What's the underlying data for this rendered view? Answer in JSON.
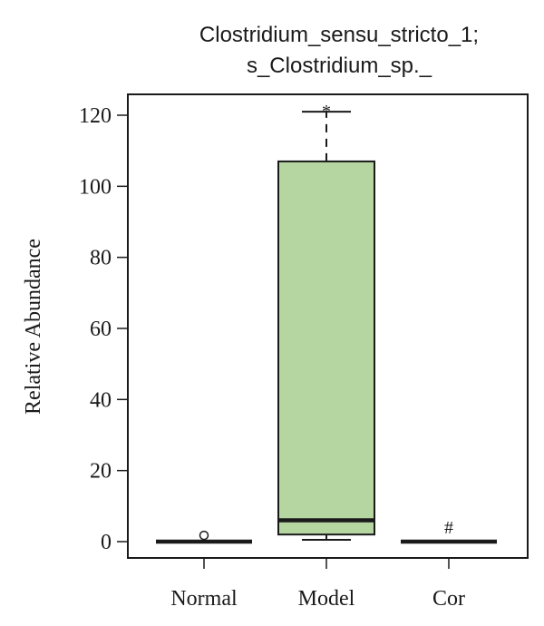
{
  "chart_data": {
    "type": "box",
    "title_lines": [
      "Clostridium_sensu_stricto_1;",
      "s_Clostridium_sp._"
    ],
    "xlabel": "",
    "ylabel": "Relative Abundance",
    "ylim": [
      -4,
      125
    ],
    "yticks": [
      0,
      20,
      40,
      60,
      80,
      100,
      120
    ],
    "categories": [
      "Normal",
      "Model",
      "Cor"
    ],
    "boxes": [
      {
        "category": "Normal",
        "min": 0,
        "q1": 0,
        "median": 0,
        "q3": 0,
        "max": 0,
        "outliers": [
          1
        ],
        "fill": "#ffffff",
        "annotation": ""
      },
      {
        "category": "Model",
        "min": 0.5,
        "q1": 2,
        "median": 6,
        "q3": 107,
        "max": 121,
        "outliers": [],
        "fill": "#b5d6a0",
        "annotation": "*"
      },
      {
        "category": "Cor",
        "min": 0,
        "q1": 0,
        "median": 0,
        "q3": 0,
        "max": 0,
        "outliers": [],
        "fill": "#ffffff",
        "annotation": "#"
      }
    ]
  }
}
